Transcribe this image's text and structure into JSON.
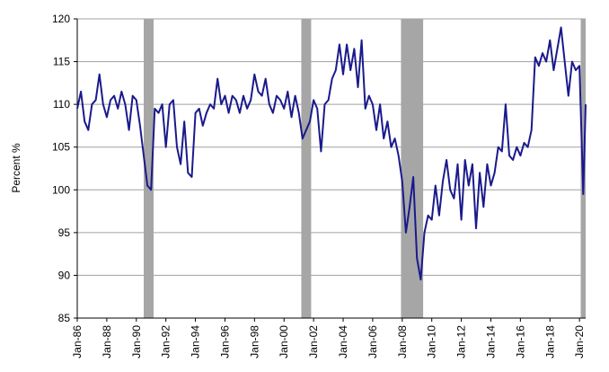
{
  "chart_data": {
    "type": "line",
    "ylabel": "Percent %",
    "color": "#1a1a8c",
    "recession_color": "#a6a6a6",
    "grid": true,
    "ylim": [
      85,
      120
    ],
    "yticks": [
      85,
      90,
      95,
      100,
      105,
      110,
      115,
      120
    ],
    "xlim": [
      "1986-01",
      "2020-06"
    ],
    "xticks": [
      {
        "value": "1986-01",
        "label": "Jan-86"
      },
      {
        "value": "1988-01",
        "label": "Jan-88"
      },
      {
        "value": "1990-01",
        "label": "Jan-90"
      },
      {
        "value": "1992-01",
        "label": "Jan-92"
      },
      {
        "value": "1994-01",
        "label": "Jan-94"
      },
      {
        "value": "1996-01",
        "label": "Jan-96"
      },
      {
        "value": "1998-01",
        "label": "Jan-98"
      },
      {
        "value": "2000-01",
        "label": "Jan-00"
      },
      {
        "value": "2002-01",
        "label": "Jan-02"
      },
      {
        "value": "2004-01",
        "label": "Jan-04"
      },
      {
        "value": "2006-01",
        "label": "Jan-06"
      },
      {
        "value": "2008-01",
        "label": "Jan-08"
      },
      {
        "value": "2010-01",
        "label": "Jan-10"
      },
      {
        "value": "2012-01",
        "label": "Jan-12"
      },
      {
        "value": "2014-01",
        "label": "Jan-14"
      },
      {
        "value": "2016-01",
        "label": "Jan-16"
      },
      {
        "value": "2018-01",
        "label": "Jan-18"
      },
      {
        "value": "2020-01",
        "label": "Jan-20"
      }
    ],
    "recessions": [
      [
        "1990-07",
        "1991-03"
      ],
      [
        "2001-03",
        "2001-11"
      ],
      [
        "2007-12",
        "2009-06"
      ],
      [
        "2020-02",
        "2020-06"
      ]
    ],
    "x": [
      "1986-01",
      "1986-04",
      "1986-07",
      "1986-10",
      "1987-01",
      "1987-04",
      "1987-07",
      "1987-10",
      "1988-01",
      "1988-04",
      "1988-07",
      "1988-10",
      "1989-01",
      "1989-04",
      "1989-07",
      "1989-10",
      "1990-01",
      "1990-04",
      "1990-07",
      "1990-10",
      "1991-01",
      "1991-04",
      "1991-07",
      "1991-10",
      "1992-01",
      "1992-04",
      "1992-07",
      "1992-10",
      "1993-01",
      "1993-04",
      "1993-07",
      "1993-10",
      "1994-01",
      "1994-04",
      "1994-07",
      "1994-10",
      "1995-01",
      "1995-04",
      "1995-07",
      "1995-10",
      "1996-01",
      "1996-04",
      "1996-07",
      "1996-10",
      "1997-01",
      "1997-04",
      "1997-07",
      "1997-10",
      "1998-01",
      "1998-04",
      "1998-07",
      "1998-10",
      "1999-01",
      "1999-04",
      "1999-07",
      "1999-10",
      "2000-01",
      "2000-04",
      "2000-07",
      "2000-10",
      "2001-01",
      "2001-04",
      "2001-07",
      "2001-10",
      "2002-01",
      "2002-04",
      "2002-07",
      "2002-10",
      "2003-01",
      "2003-04",
      "2003-07",
      "2003-10",
      "2004-01",
      "2004-04",
      "2004-07",
      "2004-10",
      "2005-01",
      "2005-04",
      "2005-07",
      "2005-10",
      "2006-01",
      "2006-04",
      "2006-07",
      "2006-10",
      "2007-01",
      "2007-04",
      "2007-07",
      "2007-10",
      "2008-01",
      "2008-04",
      "2008-07",
      "2008-10",
      "2009-01",
      "2009-04",
      "2009-07",
      "2009-10",
      "2010-01",
      "2010-04",
      "2010-07",
      "2010-10",
      "2011-01",
      "2011-04",
      "2011-07",
      "2011-10",
      "2012-01",
      "2012-04",
      "2012-07",
      "2012-10",
      "2013-01",
      "2013-04",
      "2013-07",
      "2013-10",
      "2014-01",
      "2014-04",
      "2014-07",
      "2014-10",
      "2015-01",
      "2015-04",
      "2015-07",
      "2015-10",
      "2016-01",
      "2016-04",
      "2016-07",
      "2016-10",
      "2017-01",
      "2017-04",
      "2017-07",
      "2017-10",
      "2018-01",
      "2018-04",
      "2018-07",
      "2018-10",
      "2019-01",
      "2019-04",
      "2019-07",
      "2019-10",
      "2020-01",
      "2020-04",
      "2020-06"
    ],
    "values": [
      109.5,
      111.5,
      108,
      107,
      110,
      110.5,
      113.5,
      110,
      108.5,
      110.5,
      111,
      109.5,
      111.5,
      110,
      107,
      111,
      110.5,
      107.5,
      104,
      100.5,
      100,
      109.5,
      109,
      110,
      105,
      110,
      110.5,
      105,
      103,
      108,
      102,
      101.5,
      109,
      109.5,
      107.5,
      109,
      110,
      109.5,
      113,
      110,
      111,
      109,
      111,
      110.5,
      109,
      111,
      109.5,
      110.5,
      113.5,
      111.5,
      111,
      113,
      110,
      109,
      111,
      110.5,
      109.5,
      111.5,
      108.5,
      111,
      109,
      106,
      107,
      108,
      110.5,
      109.5,
      104.5,
      110,
      110.5,
      113,
      114,
      117,
      113.5,
      117,
      114,
      116.5,
      112,
      117.5,
      109.5,
      111,
      110,
      107,
      110,
      106,
      108,
      105,
      106,
      104,
      101,
      95,
      98,
      101.5,
      92,
      89.5,
      95,
      97,
      96.5,
      100.5,
      97,
      101,
      103.5,
      100,
      99,
      103,
      96.5,
      103.5,
      100.5,
      103,
      95.5,
      102,
      98,
      103,
      100.5,
      102,
      105,
      104.5,
      110,
      104,
      103.5,
      105,
      104,
      105.5,
      105,
      107,
      115.5,
      114.5,
      116,
      115,
      117.5,
      114,
      116.5,
      119,
      115,
      111,
      115,
      114,
      114.5,
      99.5,
      110
    ]
  }
}
